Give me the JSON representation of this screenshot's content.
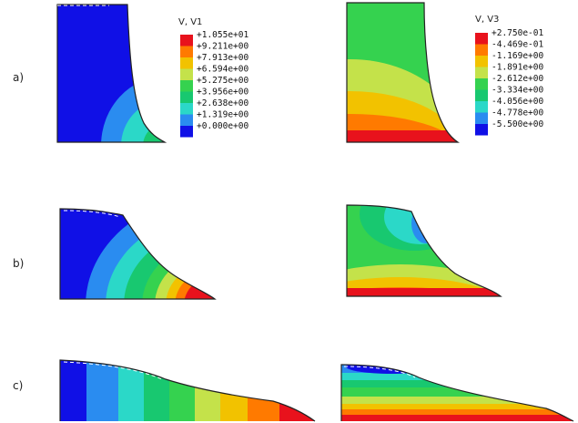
{
  "row_labels": [
    "a)",
    "b)",
    "c)"
  ],
  "legend_v1": {
    "title": "V, V1",
    "values": [
      "+1.055e+01",
      "+9.211e+00",
      "+7.913e+00",
      "+6.594e+00",
      "+5.275e+00",
      "+3.956e+00",
      "+2.638e+00",
      "+1.319e+00",
      "+0.000e+00"
    ],
    "colors": [
      "#e8121c",
      "#ff7a00",
      "#f2c200",
      "#c4e24a",
      "#35d24f",
      "#18c870",
      "#2bd8c8",
      "#2a8cf0",
      "#1010e6"
    ]
  },
  "legend_v3": {
    "title": "V, V3",
    "values": [
      "+2.750e-01",
      "-4.469e-01",
      "-1.169e+00",
      "-1.891e+00",
      "-2.612e+00",
      "-3.334e+00",
      "-4.056e+00",
      "-4.778e+00",
      "-5.500e+00"
    ],
    "colors": [
      "#e8121c",
      "#ff7a00",
      "#f2c200",
      "#c4e24a",
      "#35d24f",
      "#18c870",
      "#2bd8c8",
      "#2a8cf0",
      "#1010e6"
    ]
  }
}
